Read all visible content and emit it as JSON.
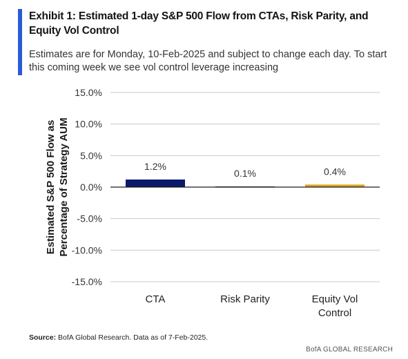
{
  "header": {
    "title": "Exhibit 1: Estimated 1-day S&P 500 Flow from CTAs, Risk Parity, and Equity Vol Control",
    "subtitle": "Estimates are for Monday, 10-Feb-2025 and subject to change each day.  To start this coming week we see vol control leverage increasing"
  },
  "footer": {
    "source_label": "Source:",
    "source_text": " BofA Global Research.  Data as of 7-Feb-2025.",
    "brand": "BofA GLOBAL RESEARCH"
  },
  "colors": {
    "accent": "#2a5bd7",
    "grid": "#c8c8c8"
  },
  "chart_data": {
    "type": "bar",
    "categories": [
      "CTA",
      "Risk Parity",
      "Equity Vol Control"
    ],
    "category_lines": [
      [
        "CTA"
      ],
      [
        "Risk Parity"
      ],
      [
        "Equity Vol",
        "Control"
      ]
    ],
    "values": [
      1.2,
      0.1,
      0.4
    ],
    "data_labels": [
      "1.2%",
      "0.1%",
      "0.4%"
    ],
    "colors": [
      "#0b1a6b",
      "#1f3a5a",
      "#d9a520"
    ],
    "ylabel_lines": [
      "Estimated S&P 500 Flow as",
      "Percentage  of Strategy AUM"
    ],
    "ylim": [
      -15,
      15
    ],
    "yticks": [
      15,
      10,
      5,
      0,
      -5,
      -10,
      -15
    ],
    "ytick_labels": [
      "15.0%",
      "10.0%",
      "5.0%",
      "0.0%",
      "-5.0%",
      "-10.0%",
      "-15.0%"
    ],
    "grid": true,
    "legend": "none"
  }
}
